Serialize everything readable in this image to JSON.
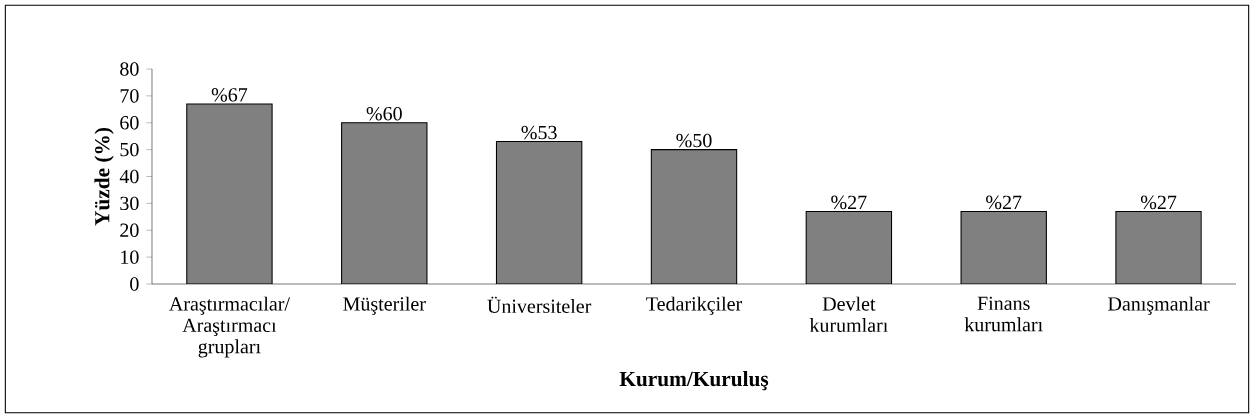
{
  "chart_data": {
    "type": "bar",
    "xlabel": "Kurum/Kuruluş",
    "ylabel": "Yüzde (%)",
    "categories": [
      "Araştırmacılar/ Araştırmacı grupları",
      "Müşteriler",
      "Üniversiteler",
      "Tedarikçiler",
      "Devlet kurumları",
      "Finans kurumları",
      "Danışmanlar"
    ],
    "values": [
      67,
      60,
      53,
      50,
      27,
      27,
      27
    ],
    "value_labels": [
      "%67",
      "%60",
      "%53",
      "%50",
      "%27",
      "%27",
      "%27"
    ],
    "color": "#808080",
    "ylim": [
      0,
      80
    ],
    "yticks": [
      0,
      10,
      20,
      30,
      40,
      50,
      60,
      70,
      80
    ],
    "grid": false
  }
}
